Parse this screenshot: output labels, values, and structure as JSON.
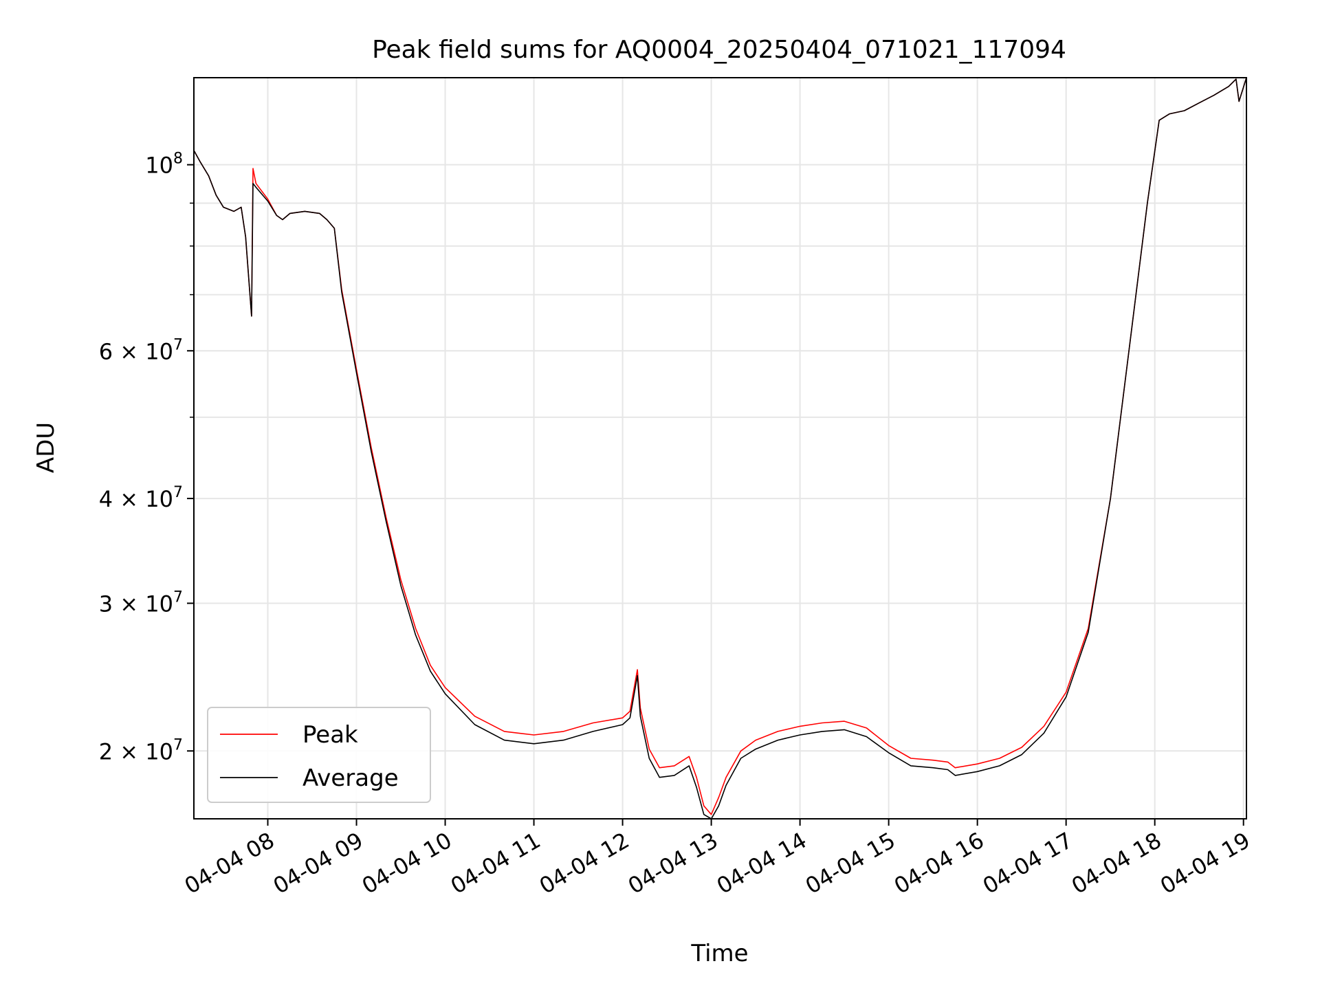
{
  "chart_data": {
    "type": "line",
    "title": "Peak field sums for AQ0004_20250404_071021_117094",
    "xlabel": "Time",
    "ylabel": "ADU",
    "y_scale": "log",
    "ylim": [
      16600000,
      127000000
    ],
    "xlim": [
      "2025-04-04 07:10",
      "2025-04-04 19:02"
    ],
    "grid": true,
    "legend_position": "lower-left",
    "x_ticks": [
      "04-04 08",
      "04-04 09",
      "04-04 10",
      "04-04 11",
      "04-04 12",
      "04-04 13",
      "04-04 14",
      "04-04 15",
      "04-04 16",
      "04-04 17",
      "04-04 18",
      "04-04 19"
    ],
    "y_ticks": [
      {
        "value": 20000000,
        "label": "2 × 10^7",
        "mantissa": "2",
        "exp": "7"
      },
      {
        "value": 30000000,
        "label": "3 × 10^7",
        "mantissa": "3",
        "exp": "7"
      },
      {
        "value": 40000000,
        "label": "4 × 10^7",
        "mantissa": "4",
        "exp": "7"
      },
      {
        "value": 60000000,
        "label": "6 × 10^7",
        "mantissa": "6",
        "exp": "7"
      },
      {
        "value": 100000000,
        "label": "10^8",
        "mantissa": "",
        "exp": "8"
      }
    ],
    "y_minor_ticks": [
      50000000,
      70000000,
      80000000,
      90000000
    ],
    "series": [
      {
        "name": "Peak",
        "color": "#ff0000",
        "x": [
          "2025-04-04 07:10",
          "2025-04-04 07:14",
          "2025-04-04 07:20",
          "2025-04-04 07:25",
          "2025-04-04 07:30",
          "2025-04-04 07:37",
          "2025-04-04 07:42",
          "2025-04-04 07:45",
          "2025-04-04 07:49",
          "2025-04-04 07:50",
          "2025-04-04 07:52",
          "2025-04-04 08:00",
          "2025-04-04 08:06",
          "2025-04-04 08:10",
          "2025-04-04 08:15",
          "2025-04-04 08:25",
          "2025-04-04 08:35",
          "2025-04-04 08:40",
          "2025-04-04 08:45",
          "2025-04-04 08:50",
          "2025-04-04 09:00",
          "2025-04-04 09:10",
          "2025-04-04 09:20",
          "2025-04-04 09:30",
          "2025-04-04 09:40",
          "2025-04-04 09:50",
          "2025-04-04 10:00",
          "2025-04-04 10:20",
          "2025-04-04 10:40",
          "2025-04-04 11:00",
          "2025-04-04 11:20",
          "2025-04-04 11:40",
          "2025-04-04 12:00",
          "2025-04-04 12:05",
          "2025-04-04 12:10",
          "2025-04-04 12:12",
          "2025-04-04 12:18",
          "2025-04-04 12:25",
          "2025-04-04 12:35",
          "2025-04-04 12:45",
          "2025-04-04 12:50",
          "2025-04-04 12:55",
          "2025-04-04 13:00",
          "2025-04-04 13:05",
          "2025-04-04 13:10",
          "2025-04-04 13:20",
          "2025-04-04 13:30",
          "2025-04-04 13:45",
          "2025-04-04 14:00",
          "2025-04-04 14:15",
          "2025-04-04 14:30",
          "2025-04-04 14:45",
          "2025-04-04 15:00",
          "2025-04-04 15:15",
          "2025-04-04 15:30",
          "2025-04-04 15:40",
          "2025-04-04 15:45",
          "2025-04-04 16:00",
          "2025-04-04 16:15",
          "2025-04-04 16:30",
          "2025-04-04 16:45",
          "2025-04-04 17:00",
          "2025-04-04 17:15",
          "2025-04-04 17:30",
          "2025-04-04 17:45",
          "2025-04-04 17:55",
          "2025-04-04 18:03",
          "2025-04-04 18:10",
          "2025-04-04 18:20",
          "2025-04-04 18:30",
          "2025-04-04 18:40",
          "2025-04-04 18:50",
          "2025-04-04 18:55",
          "2025-04-04 18:57",
          "2025-04-04 19:02"
        ],
        "y": [
          104000000,
          101000000,
          97000000,
          92000000,
          89000000,
          88000000,
          89000000,
          82000000,
          66000000,
          99000000,
          95000000,
          91000000,
          87000000,
          86000000,
          87500000,
          88000000,
          87500000,
          86000000,
          84000000,
          71000000,
          57000000,
          46000000,
          38000000,
          32000000,
          28000000,
          25300000,
          23800000,
          22000000,
          21100000,
          20900000,
          21100000,
          21600000,
          21900000,
          22300000,
          25000000,
          22500000,
          20100000,
          19100000,
          19200000,
          19700000,
          18600000,
          17200000,
          16800000,
          17600000,
          18600000,
          20000000,
          20600000,
          21100000,
          21400000,
          21600000,
          21700000,
          21300000,
          20300000,
          19600000,
          19500000,
          19400000,
          19100000,
          19300000,
          19600000,
          20200000,
          21400000,
          23500000,
          28000000,
          40000000,
          65000000,
          90000000,
          113000000,
          115000000,
          116000000,
          118500000,
          121000000,
          124000000,
          126500000,
          119000000,
          127000000
        ]
      },
      {
        "name": "Average",
        "color": "#000000",
        "x": [
          "2025-04-04 07:10",
          "2025-04-04 07:14",
          "2025-04-04 07:20",
          "2025-04-04 07:25",
          "2025-04-04 07:30",
          "2025-04-04 07:37",
          "2025-04-04 07:42",
          "2025-04-04 07:45",
          "2025-04-04 07:49",
          "2025-04-04 07:50",
          "2025-04-04 07:52",
          "2025-04-04 08:00",
          "2025-04-04 08:06",
          "2025-04-04 08:10",
          "2025-04-04 08:15",
          "2025-04-04 08:25",
          "2025-04-04 08:35",
          "2025-04-04 08:40",
          "2025-04-04 08:45",
          "2025-04-04 08:50",
          "2025-04-04 09:00",
          "2025-04-04 09:10",
          "2025-04-04 09:20",
          "2025-04-04 09:30",
          "2025-04-04 09:40",
          "2025-04-04 09:50",
          "2025-04-04 10:00",
          "2025-04-04 10:20",
          "2025-04-04 10:40",
          "2025-04-04 11:00",
          "2025-04-04 11:20",
          "2025-04-04 11:40",
          "2025-04-04 12:00",
          "2025-04-04 12:05",
          "2025-04-04 12:10",
          "2025-04-04 12:12",
          "2025-04-04 12:18",
          "2025-04-04 12:25",
          "2025-04-04 12:35",
          "2025-04-04 12:45",
          "2025-04-04 12:50",
          "2025-04-04 12:55",
          "2025-04-04 13:00",
          "2025-04-04 13:05",
          "2025-04-04 13:10",
          "2025-04-04 13:20",
          "2025-04-04 13:30",
          "2025-04-04 13:45",
          "2025-04-04 14:00",
          "2025-04-04 14:15",
          "2025-04-04 14:30",
          "2025-04-04 14:45",
          "2025-04-04 15:00",
          "2025-04-04 15:15",
          "2025-04-04 15:30",
          "2025-04-04 15:40",
          "2025-04-04 15:45",
          "2025-04-04 16:00",
          "2025-04-04 16:15",
          "2025-04-04 16:30",
          "2025-04-04 16:45",
          "2025-04-04 17:00",
          "2025-04-04 17:15",
          "2025-04-04 17:30",
          "2025-04-04 17:45",
          "2025-04-04 17:55",
          "2025-04-04 18:03",
          "2025-04-04 18:10",
          "2025-04-04 18:20",
          "2025-04-04 18:30",
          "2025-04-04 18:40",
          "2025-04-04 18:50",
          "2025-04-04 18:55",
          "2025-04-04 18:57",
          "2025-04-04 19:02"
        ],
        "y": [
          104000000,
          101000000,
          97000000,
          92000000,
          89000000,
          88000000,
          89000000,
          82000000,
          66000000,
          95000000,
          94000000,
          90500000,
          87000000,
          86000000,
          87500000,
          88000000,
          87500000,
          86000000,
          84000000,
          70500000,
          56500000,
          45500000,
          37600000,
          31500000,
          27500000,
          24900000,
          23400000,
          21500000,
          20600000,
          20400000,
          20600000,
          21100000,
          21500000,
          21900000,
          24600000,
          22000000,
          19600000,
          18600000,
          18700000,
          19200000,
          18100000,
          16800000,
          16600000,
          17200000,
          18200000,
          19600000,
          20100000,
          20600000,
          20900000,
          21100000,
          21200000,
          20800000,
          19900000,
          19200000,
          19100000,
          19000000,
          18700000,
          18900000,
          19200000,
          19800000,
          21000000,
          23200000,
          27700000,
          40000000,
          65000000,
          90000000,
          113000000,
          115000000,
          116000000,
          118500000,
          121000000,
          124000000,
          126500000,
          119000000,
          127000000
        ]
      }
    ]
  }
}
